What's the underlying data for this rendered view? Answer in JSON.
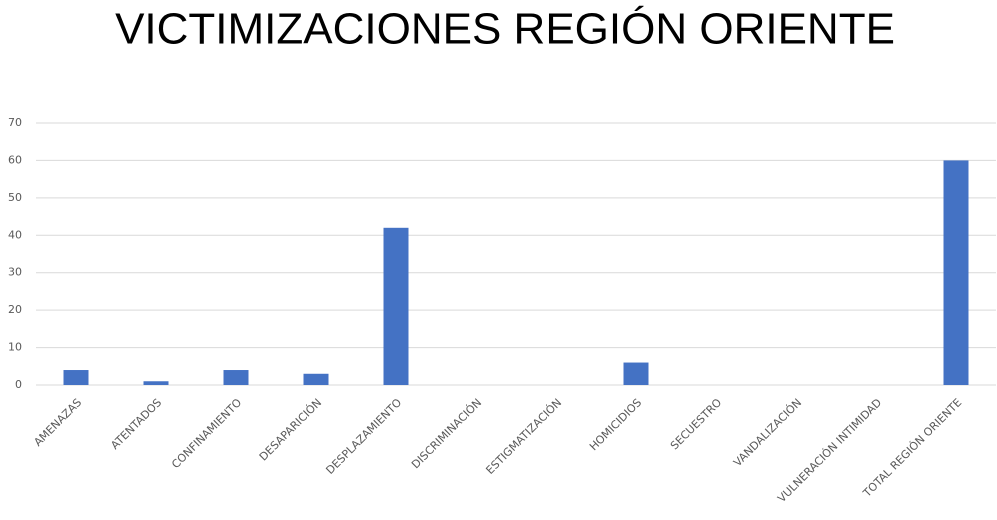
{
  "chart_data": {
    "type": "bar",
    "title": "VICTIMIZACIONES REGIÓN ORIENTE",
    "categories": [
      "AMENAZAS",
      "ATENTADOS",
      "CONFINAMIENTO",
      "DESAPARICIÓN",
      "DESPLAZAMIENTO",
      "DISCRIMINACIÓN",
      "ESTIGMATIZACIÓN",
      "HOMICIDIOS",
      "SECUESTRO",
      "VANDALIZACIÓN",
      "VULNERACIÓN INTIMIDAD",
      "TOTAL REGIÓN ORIENTE"
    ],
    "values": [
      4,
      1,
      4,
      3,
      42,
      0,
      0,
      6,
      0,
      0,
      0,
      60
    ],
    "color": "#4472c4",
    "ylim": [
      0,
      70
    ],
    "yticks": [
      0,
      10,
      20,
      30,
      40,
      50,
      60,
      70
    ],
    "grid": true
  }
}
